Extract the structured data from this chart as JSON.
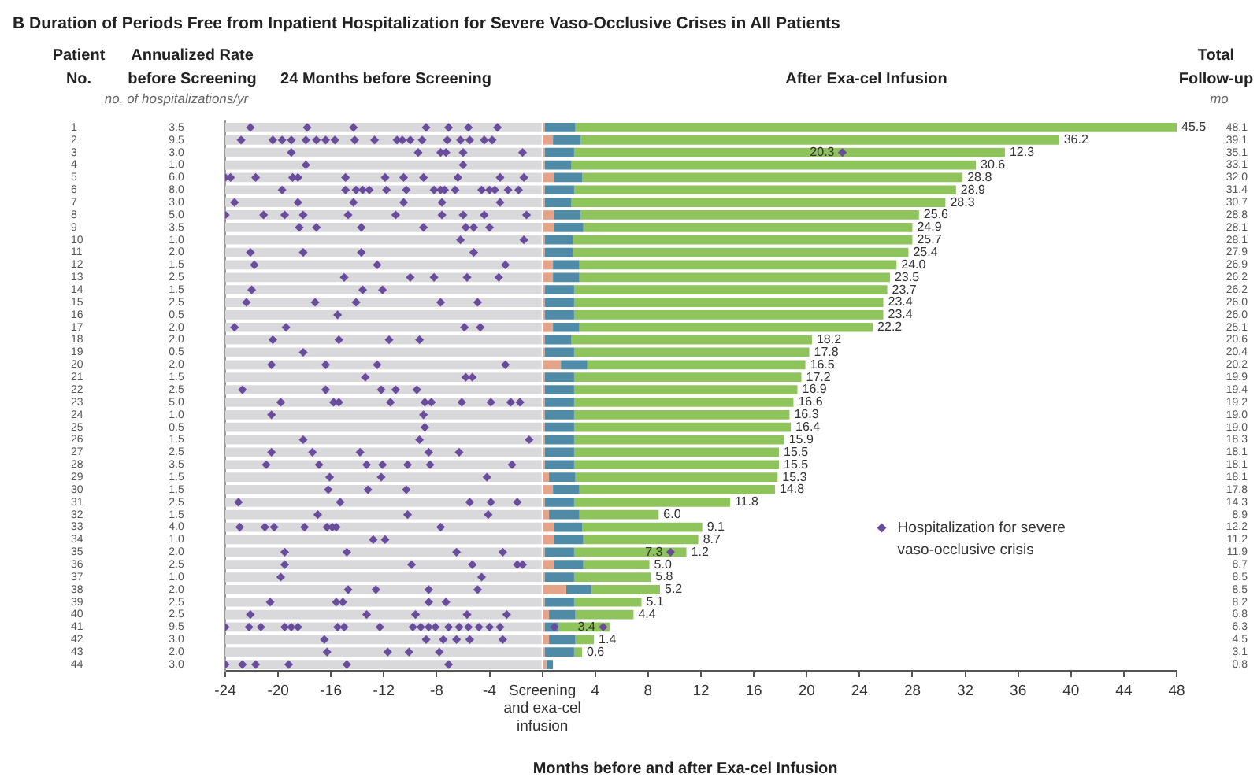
{
  "chart_data": {
    "type": "bar",
    "orientation": "horizontal",
    "stacked": true,
    "title": "B Duration of Periods Free from Inpatient Hospitalization for Severe Vaso-Occlusive Crises in All Patients",
    "ylabel": "Patient No.",
    "y2label": "Total Follow-up",
    "xlabel": "Months before and after Exa-cel Infusion",
    "categories": [
      "1",
      "2",
      "3",
      "4",
      "5",
      "6",
      "7",
      "8",
      "9",
      "10",
      "11",
      "12",
      "13",
      "14",
      "15",
      "16",
      "17",
      "18",
      "19",
      "20",
      "21",
      "22",
      "23",
      "24",
      "25",
      "26",
      "27",
      "28",
      "29",
      "30",
      "31",
      "32",
      "33",
      "34",
      "35",
      "36",
      "37",
      "38",
      "39",
      "40",
      "41",
      "42",
      "43",
      "44"
    ],
    "y2_categories": [
      "48.1",
      "39.1",
      "35.1",
      "33.1",
      "32.0",
      "31.4",
      "30.7",
      "28.8",
      "28.1",
      "28.1",
      "27.9",
      "26.9",
      "26.2",
      "26.2",
      "26.0",
      "26.0",
      "25.1",
      "20.6",
      "20.4",
      "20.2",
      "19.9",
      "19.4",
      "19.2",
      "19.0",
      "19.0",
      "18.3",
      "18.1",
      "18.1",
      "18.1",
      "17.8",
      "14.3",
      "8.9",
      "12.2",
      "11.2",
      "11.9",
      "8.7",
      "8.5",
      "8.5",
      "8.2",
      "6.8",
      "6.3",
      "4.5",
      "3.1",
      "0.8"
    ],
    "xlim": [
      -24,
      48
    ],
    "xticks": [
      -24,
      -20,
      -16,
      -12,
      -8,
      -4,
      {
        "value": 0,
        "label": "Screening and exa-cel infusion"
      },
      4,
      8,
      12,
      16,
      20,
      24,
      28,
      32,
      36,
      40,
      44,
      48
    ],
    "grid": false,
    "legend": "right",
    "series": [
      {
        "color": "#d9d9dc",
        "values": [
          -24,
          -24,
          -24,
          -24,
          -24,
          -24,
          -24,
          -24,
          -24,
          -24,
          -24,
          -24,
          -24,
          -24,
          -24,
          -24,
          -24,
          -24,
          -24,
          -24,
          -24,
          -24,
          -24,
          -24,
          -24,
          -24,
          -24,
          -24,
          -24,
          -24,
          -24,
          -24,
          -24,
          -24,
          -24,
          -24,
          -24,
          -24,
          -24,
          -24,
          -24,
          -24,
          -24,
          -24
        ]
      },
      {
        "color": "#e4a48a",
        "values": [
          0.2,
          0.8,
          0.2,
          0.2,
          0.9,
          0.2,
          0.2,
          0.9,
          0.9,
          0.2,
          0.2,
          0.8,
          0.8,
          0.2,
          0.2,
          0.2,
          0.8,
          0.2,
          0.2,
          1.4,
          0.2,
          0.2,
          0.2,
          0.2,
          0.2,
          0.2,
          0.2,
          0.2,
          0.5,
          0.8,
          0.2,
          0.5,
          0.9,
          0.9,
          0.2,
          0.9,
          0.2,
          1.8,
          0.2,
          0.5,
          0.2,
          0.5,
          0.2,
          0.3
        ]
      },
      {
        "color": "#4f8aa6",
        "values": [
          2.3,
          2.1,
          2.2,
          2.0,
          2.1,
          2.2,
          2.0,
          2.0,
          2.2,
          2.1,
          2.1,
          2.0,
          2.0,
          2.2,
          2.2,
          2.2,
          2.0,
          2.0,
          2.2,
          2.0,
          2.2,
          2.2,
          2.2,
          2.2,
          2.2,
          2.2,
          2.2,
          2.2,
          2.0,
          2.0,
          2.2,
          2.3,
          2.1,
          2.2,
          2.2,
          2.2,
          2.2,
          1.9,
          2.2,
          2.0,
          1.0,
          2.0,
          2.2,
          0.5
        ]
      },
      {
        "color": "#8fc35c",
        "values": [
          45.5,
          36.2,
          20.3,
          30.6,
          28.8,
          28.9,
          28.3,
          25.6,
          24.9,
          25.7,
          25.4,
          24.0,
          23.5,
          23.7,
          23.4,
          23.4,
          22.2,
          18.2,
          17.8,
          16.5,
          17.2,
          16.9,
          16.6,
          16.3,
          16.4,
          15.9,
          15.5,
          15.5,
          15.3,
          14.8,
          11.8,
          6.0,
          9.1,
          8.7,
          7.3,
          5.0,
          5.8,
          5.2,
          5.1,
          4.4,
          3.4,
          1.4,
          0.6,
          null
        ],
        "value_labels": [
          "45.5",
          "36.2",
          "20.3",
          "30.6",
          "28.8",
          "28.9",
          "28.3",
          "25.6",
          "24.9",
          "25.7",
          "25.4",
          "24.0",
          "23.5",
          "23.7",
          "23.4",
          "23.4",
          "22.2",
          "18.2",
          "17.8",
          "16.5",
          "17.2",
          "16.9",
          "16.6",
          "16.3",
          "16.4",
          "15.9",
          "15.5",
          "15.5",
          "15.3",
          "14.8",
          "11.8",
          "6.0",
          "9.1",
          "8.7",
          "7.3",
          "5.0",
          "5.8",
          "5.2",
          "5.1",
          "4.4",
          "3.4",
          "1.4",
          "0.6",
          null
        ]
      },
      {
        "color": "#8fc35c",
        "values": [
          null,
          null,
          12.3,
          null,
          null,
          null,
          null,
          null,
          null,
          null,
          null,
          null,
          null,
          null,
          null,
          null,
          null,
          null,
          null,
          null,
          null,
          null,
          null,
          null,
          null,
          null,
          null,
          null,
          null,
          null,
          null,
          null,
          null,
          null,
          1.2,
          null,
          null,
          null,
          null,
          null,
          0.5,
          null,
          null,
          null
        ],
        "value_labels": [
          null,
          null,
          "12.3",
          null,
          null,
          null,
          null,
          null,
          null,
          null,
          null,
          null,
          null,
          null,
          null,
          null,
          null,
          null,
          null,
          null,
          null,
          null,
          null,
          null,
          null,
          null,
          null,
          null,
          null,
          null,
          null,
          null,
          null,
          null,
          "1.2",
          null,
          null,
          null,
          null,
          null,
          null,
          null,
          null,
          null
        ]
      },
      {
        "type": "scatter",
        "name": "Hospitalization for severe vaso-occlusive crisis",
        "color": "#6a4c9c",
        "marker": "diamond",
        "x": [
          "1",
          "1",
          "1",
          "1",
          "1",
          "1",
          "1",
          "2",
          "2",
          "2",
          "2",
          "2",
          "2",
          "2",
          "2",
          "2",
          "2",
          "2",
          "2",
          "2",
          "2",
          "2",
          "2",
          "2",
          "2",
          "2",
          "3",
          "3",
          "3",
          "3",
          "3",
          "3",
          "3",
          "4",
          "4",
          "5",
          "5",
          "5",
          "5",
          "5",
          "5",
          "5",
          "5",
          "5",
          "5",
          "5",
          "5",
          "6",
          "6",
          "6",
          "6",
          "6",
          "6",
          "6",
          "6",
          "6",
          "6",
          "6",
          "6",
          "6",
          "6",
          "6",
          "6",
          "7",
          "7",
          "7",
          "7",
          "7",
          "7",
          "8",
          "8",
          "8",
          "8",
          "8",
          "8",
          "8",
          "8",
          "8",
          "8",
          "9",
          "9",
          "9",
          "9",
          "9",
          "9",
          "9",
          "10",
          "10",
          "11",
          "11",
          "11",
          "11",
          "12",
          "12",
          "12",
          "13",
          "13",
          "13",
          "13",
          "13",
          "14",
          "14",
          "14",
          "15",
          "15",
          "15",
          "15",
          "15",
          "16",
          "17",
          "17",
          "17",
          "17",
          "18",
          "18",
          "18",
          "18",
          "19",
          "20",
          "20",
          "20",
          "20",
          "21",
          "21",
          "21",
          "22",
          "22",
          "22",
          "22",
          "22",
          "23",
          "23",
          "23",
          "23",
          "23",
          "23",
          "23",
          "23",
          "23",
          "23",
          "24",
          "24",
          "25",
          "26",
          "26",
          "26",
          "27",
          "27",
          "27",
          "27",
          "27",
          "28",
          "28",
          "28",
          "28",
          "28",
          "28",
          "28",
          "29",
          "29",
          "29",
          "30",
          "30",
          "30",
          "31",
          "31",
          "31",
          "31",
          "31",
          "32",
          "32",
          "32",
          "33",
          "33",
          "33",
          "33",
          "33",
          "33",
          "33",
          "33",
          "34",
          "34",
          "35",
          "35",
          "35",
          "35",
          "35",
          "36",
          "36",
          "36",
          "36",
          "36",
          "37",
          "37",
          "38",
          "38",
          "38",
          "38",
          "39",
          "39",
          "39",
          "39",
          "39",
          "40",
          "40",
          "40",
          "40",
          "40",
          "41",
          "41",
          "41",
          "41",
          "41",
          "41",
          "41",
          "41",
          "41",
          "41",
          "41",
          "41",
          "41",
          "41",
          "41",
          "41",
          "41",
          "41",
          "41",
          "41",
          "41",
          "42",
          "42",
          "42",
          "42",
          "42",
          "42",
          "43",
          "43",
          "43",
          "43",
          "44",
          "44",
          "44",
          "44",
          "44",
          "44"
        ],
        "values": [
          -22.1,
          -17.8,
          -14.3,
          -8.8,
          -7.1,
          -5.6,
          -3.4,
          -22.8,
          -20.4,
          -19.7,
          -19,
          -17.9,
          -17.1,
          -16.4,
          -15.7,
          -14.2,
          -12.7,
          -11,
          -10.6,
          -10,
          -9.1,
          -7.2,
          -6.2,
          -5.5,
          -4.4,
          -3.8,
          -19,
          -9.4,
          -7.7,
          -7.3,
          -6,
          -1.5,
          22.7,
          -17.9,
          -6,
          -24,
          -23.6,
          -21.7,
          -18.9,
          -18.5,
          -14.9,
          -11.9,
          -10.5,
          -9,
          -6.4,
          -3.2,
          -1.4,
          -19.7,
          -14.9,
          -14.1,
          -13.6,
          -13.1,
          -11.8,
          -10.3,
          -8.2,
          -7.7,
          -7.4,
          -6.6,
          -4.6,
          -4,
          -3.6,
          -2.6,
          -1.8,
          -23.3,
          -18.5,
          -14.3,
          -10.5,
          -7.6,
          -3.2,
          -24,
          -21.1,
          -19.5,
          -18.1,
          -14.7,
          -11.1,
          -7.6,
          -6,
          -4.4,
          -1.2,
          -18.4,
          -17.1,
          -13.7,
          -9,
          -5.8,
          -5.2,
          -4,
          -6.2,
          -1.4,
          -22.1,
          -18.1,
          -13.7,
          -5.2,
          -21.8,
          -12.5,
          -2.8,
          -15,
          -10,
          -8.2,
          -5.7,
          -3.3,
          -22,
          -13.6,
          -12.1,
          -22.4,
          -17.2,
          -14.1,
          -7.7,
          -4.9,
          -15.5,
          -23.3,
          -19.4,
          -5.9,
          -4.7,
          -20.4,
          -15.4,
          -11.6,
          -9.3,
          -18.1,
          -20.5,
          -16.4,
          -12.5,
          -2.8,
          -13.4,
          -5.8,
          -5.3,
          -22.7,
          -16.4,
          -12.2,
          -11.1,
          -9.5,
          -19.8,
          -15.8,
          -15.4,
          -11.5,
          -8.9,
          -8.4,
          -6.1,
          -3.9,
          -2.4,
          -1.7,
          -20.5,
          -9,
          -8.9,
          -18.1,
          -9.3,
          -1,
          -20.5,
          -17.4,
          -13.8,
          -8.6,
          -6.3,
          -20.9,
          -16.9,
          -13.3,
          -12.1,
          -10.2,
          -8.5,
          -2.3,
          -16.1,
          -12.2,
          -4.2,
          -16.2,
          -13.2,
          -10.3,
          -23,
          -15.3,
          -5.5,
          -3.9,
          -1.9,
          -17,
          -10.2,
          -4.1,
          -22.9,
          -21,
          -20.3,
          -18,
          -16.3,
          -15.9,
          -15.6,
          -7.7,
          -12.8,
          -11.9,
          -19.5,
          -14.8,
          -6.5,
          -3,
          9.7,
          -19.5,
          -9.9,
          -5.3,
          -1.9,
          -1.5,
          -19.8,
          -4.6,
          -14.7,
          -12.6,
          -8.6,
          -4.9,
          -20.6,
          -15.6,
          -15.1,
          -8.6,
          -7.3,
          -22.1,
          -13.3,
          -9.6,
          -5.7,
          -2.7,
          -24,
          -22.2,
          -21.3,
          -19.5,
          -19,
          -18.5,
          -15.5,
          -15,
          -12.3,
          -9.8,
          -9.2,
          -8.6,
          -8.1,
          -7.1,
          -6.3,
          -5.6,
          -4.8,
          -4,
          -3.2,
          0.9,
          4.6,
          -16.5,
          -8.8,
          -7.5,
          -6.5,
          -5.5,
          -3,
          -16.3,
          -11.7,
          -10.1,
          -7.8,
          -24,
          -22.7,
          -21.7,
          -19.2,
          -14.8,
          -7.1
        ]
      }
    ],
    "annotations": [
      "Annualized Rate before Screening",
      "no. of hospitalizations/yr",
      "24 Months before Screening",
      "After Exa-cel Infusion",
      "mo",
      "3.5",
      "9.5",
      "3.0",
      "1.0",
      "6.0",
      "8.0",
      "3.0",
      "5.0",
      "3.5",
      "1.0",
      "2.0",
      "1.5",
      "2.5",
      "1.5",
      "2.5",
      "0.5",
      "2.0",
      "2.0",
      "0.5",
      "2.0",
      "1.5",
      "2.5",
      "5.0",
      "1.0",
      "0.5",
      "1.5",
      "2.5",
      "3.5",
      "1.5",
      "1.5",
      "2.5",
      "1.5",
      "4.0",
      "1.0",
      "2.0",
      "2.5",
      "1.0",
      "2.0",
      "2.5",
      "2.5",
      "9.5",
      "3.0",
      "2.0",
      "3.0"
    ]
  }
}
